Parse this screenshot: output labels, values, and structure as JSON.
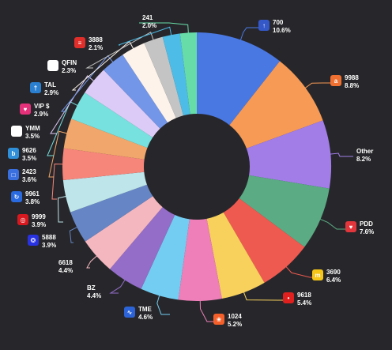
{
  "chart_data": {
    "type": "pie",
    "donut": true,
    "title": "",
    "legend": "none",
    "slices": [
      {
        "label": "700",
        "value": 10.6,
        "pct_text": "10.6%",
        "color": "#4a78e3",
        "icon": "tencent-icon",
        "icon_color": "#3458c8",
        "glyph": "↑"
      },
      {
        "label": "9988",
        "value": 8.8,
        "pct_text": "8.8%",
        "color": "#f79a55",
        "icon": "alibaba-icon",
        "icon_color": "#ef7030",
        "glyph": "a"
      },
      {
        "label": "Other",
        "value": 8.2,
        "pct_text": "8.2%",
        "color": "#a27de8",
        "icon": "",
        "icon_color": "",
        "glyph": ""
      },
      {
        "label": "PDD",
        "value": 7.6,
        "pct_text": "7.6%",
        "color": "#5bab84",
        "icon": "pdd-icon",
        "icon_color": "#e2363c",
        "glyph": "♥"
      },
      {
        "label": "3690",
        "value": 6.4,
        "pct_text": "6.4%",
        "color": "#ef5a50",
        "icon": "meituan-icon",
        "icon_color": "#f5c518",
        "glyph": "m"
      },
      {
        "label": "9618",
        "value": 5.4,
        "pct_text": "5.4%",
        "color": "#f8d15c",
        "icon": "jd-icon",
        "icon_color": "#e0201e",
        "glyph": "•"
      },
      {
        "label": "1024",
        "value": 5.2,
        "pct_text": "5.2%",
        "color": "#ee7fb9",
        "icon": "kuaishou-icon",
        "icon_color": "#f5602a",
        "glyph": "❀"
      },
      {
        "label": "TME",
        "value": 4.6,
        "pct_text": "4.6%",
        "color": "#73cdf2",
        "icon": "tme-icon",
        "icon_color": "#2c64d8",
        "glyph": "∿"
      },
      {
        "label": "BZ",
        "value": 4.4,
        "pct_text": "4.4%",
        "color": "#936dc8",
        "icon": "",
        "icon_color": "",
        "glyph": ""
      },
      {
        "label": "6618",
        "value": 4.4,
        "pct_text": "4.4%",
        "color": "#f5b7bf",
        "icon": "",
        "icon_color": "",
        "glyph": ""
      },
      {
        "label": "5888",
        "value": 3.9,
        "pct_text": "3.9%",
        "color": "#6685c5",
        "icon": "baidu-icon",
        "icon_color": "#2932e1",
        "glyph": "❂"
      },
      {
        "label": "9999",
        "value": 3.9,
        "pct_text": "3.9%",
        "color": "#bde5ea",
        "icon": "netease-icon",
        "icon_color": "#d7191f",
        "glyph": "◎"
      },
      {
        "label": "9961",
        "value": 3.8,
        "pct_text": "3.8%",
        "color": "#f6857a",
        "icon": "trip-icon",
        "icon_color": "#2a6ae0",
        "glyph": "↻"
      },
      {
        "label": "2423",
        "value": 3.6,
        "pct_text": "3.6%",
        "color": "#f1a76b",
        "icon": "beike-icon",
        "icon_color": "#3a6fe0",
        "glyph": "□"
      },
      {
        "label": "9626",
        "value": 3.5,
        "pct_text": "3.5%",
        "color": "#76e1de",
        "icon": "bilibili-icon",
        "icon_color": "#2f8fd8",
        "glyph": "b"
      },
      {
        "label": "YMM",
        "value": 3.5,
        "pct_text": "3.5%",
        "color": "#dccbf6",
        "icon": "ymm-icon",
        "icon_color": "#ffffff",
        "glyph": "▬"
      },
      {
        "label": "VIP $",
        "value": 2.9,
        "pct_text": "2.9%",
        "color": "#7396e8",
        "icon": "vipshop-icon",
        "icon_color": "#e5307a",
        "glyph": "♥"
      },
      {
        "label": "TAL",
        "value": 2.9,
        "pct_text": "2.9%",
        "color": "#fdf3ea",
        "icon": "tal-icon",
        "icon_color": "#2a7fd0",
        "glyph": "†"
      },
      {
        "label": "QFIN",
        "value": 2.3,
        "pct_text": "2.3%",
        "color": "#c4c4c4",
        "icon": "qfin-icon",
        "icon_color": "#ffffff",
        "glyph": "●"
      },
      {
        "label": "3888",
        "value": 2.1,
        "pct_text": "2.1%",
        "color": "#4dbce6",
        "icon": "kingsoft-icon",
        "icon_color": "#e02f2a",
        "glyph": "≡"
      },
      {
        "label": "241",
        "value": 2.0,
        "pct_text": "2.0%",
        "color": "#67dca8",
        "icon": "",
        "icon_color": "",
        "glyph": ""
      }
    ]
  }
}
